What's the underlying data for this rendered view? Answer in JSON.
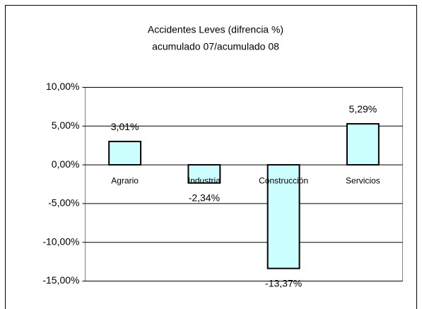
{
  "chart_data": {
    "type": "bar",
    "title": "Accidentes Leves (difrencia %)",
    "subtitle": "acumulado 07/acumulado 08",
    "categories": [
      "Agrario",
      "Industria",
      "Construcción",
      "Servicios"
    ],
    "values": [
      3.01,
      -2.34,
      -13.37,
      5.29
    ],
    "value_labels": [
      "3,01%",
      "-2,34%",
      "-13,37%",
      "5,29%"
    ],
    "color": "#ccffff",
    "ylim": [
      -15,
      10
    ],
    "yticks": [
      {
        "value": -15,
        "label": "-15,00%"
      },
      {
        "value": -10,
        "label": "-10,00%"
      },
      {
        "value": -5,
        "label": "-5,00%"
      },
      {
        "value": 0,
        "label": "0,00%"
      },
      {
        "value": 5,
        "label": "5,00%"
      },
      {
        "value": 10,
        "label": "10,00%"
      }
    ],
    "grid": true
  }
}
